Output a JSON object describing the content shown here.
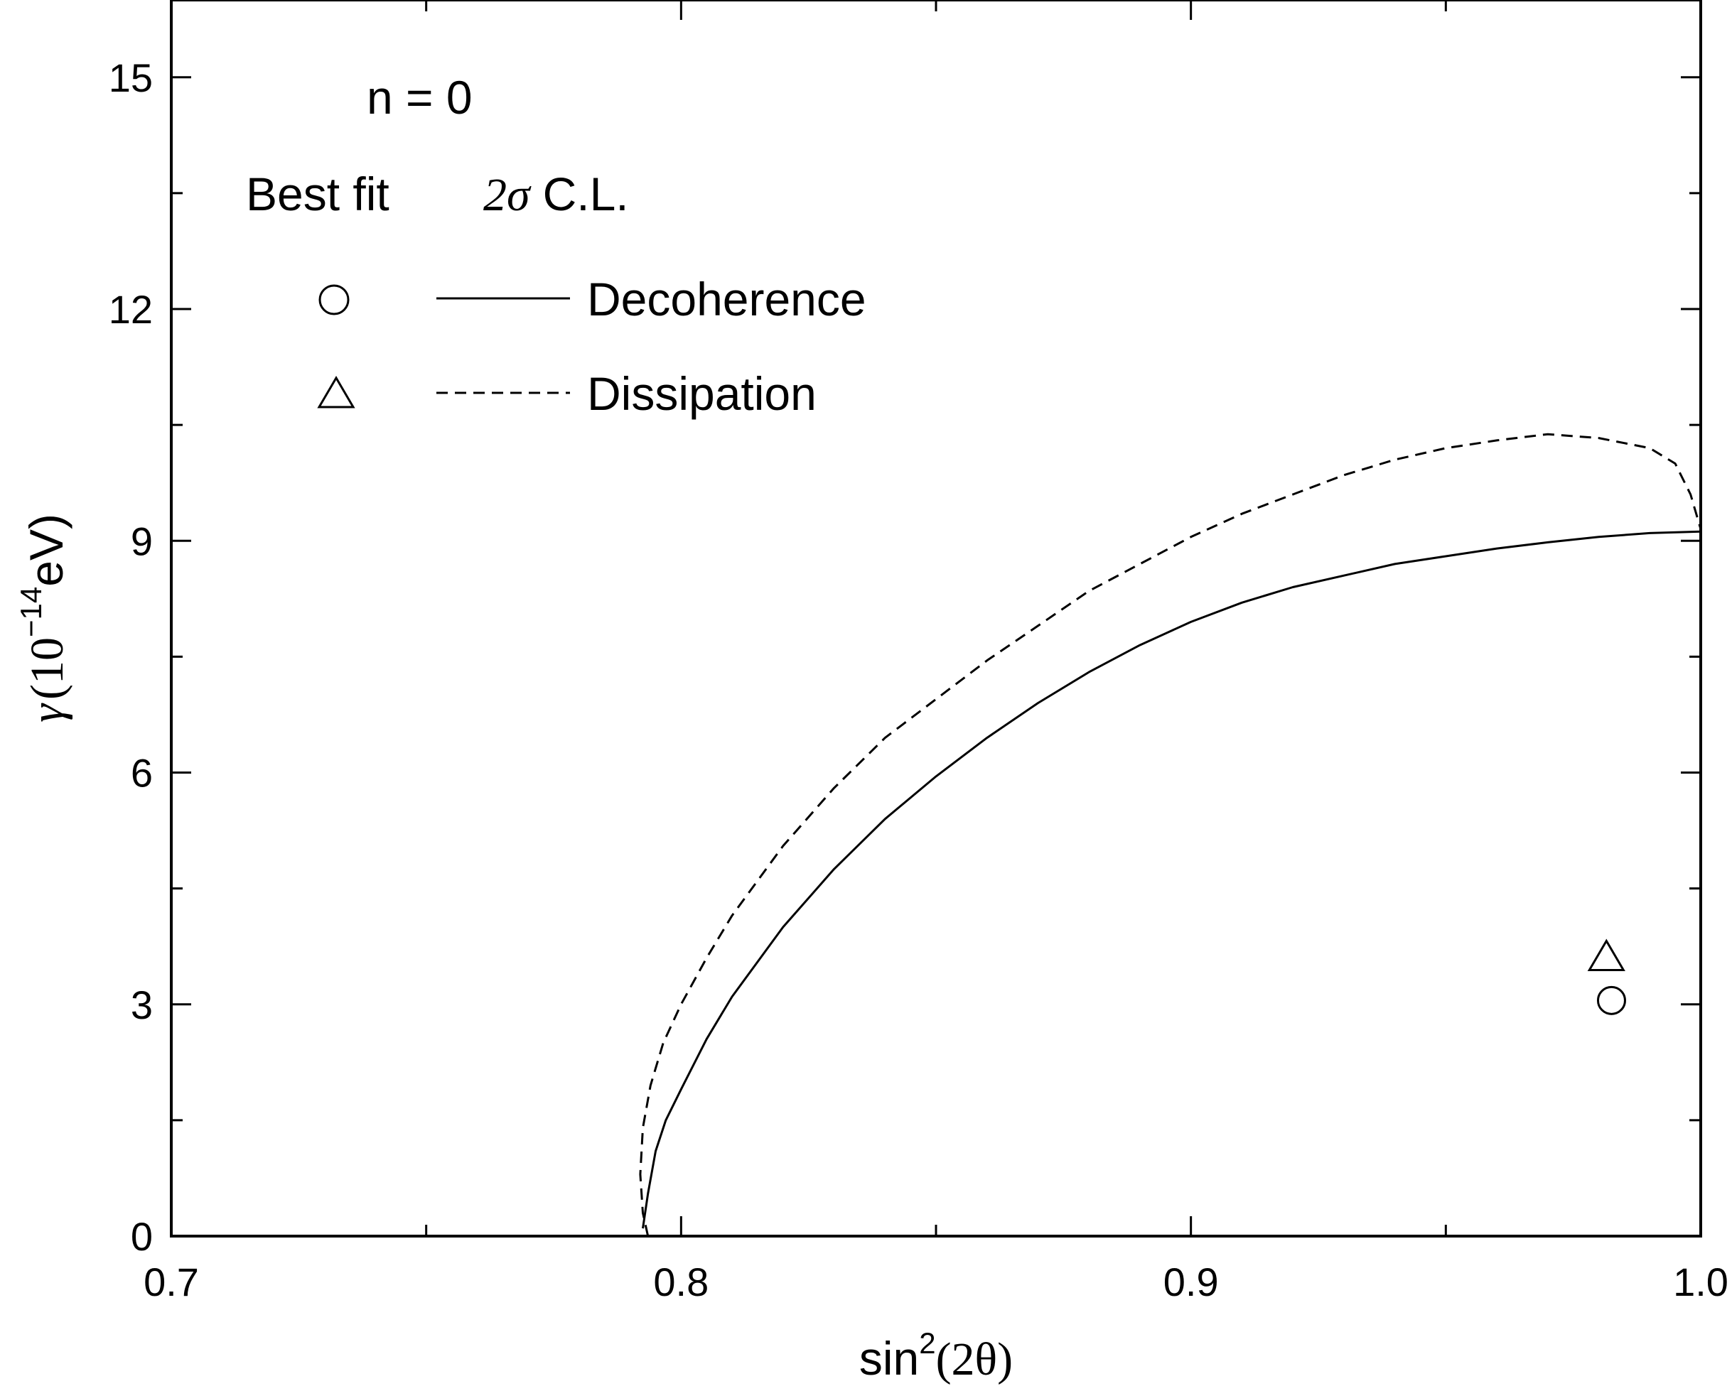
{
  "chart_data": {
    "type": "line",
    "annotation": "n = 0",
    "xlabel": {
      "base": "sin",
      "sup": "2",
      "arg": "(2θ)"
    },
    "ylabel": {
      "sym": "γ",
      "paren_open": "(10",
      "sup": "−14",
      "unit": "eV)"
    },
    "xlim": [
      0.7,
      1.0
    ],
    "ylim": [
      0,
      16
    ],
    "xticks": [
      0.7,
      0.8,
      0.9,
      1.0
    ],
    "xtick_labels": [
      "0.7",
      "0.8",
      "0.9",
      "1.0"
    ],
    "yticks": [
      0,
      3,
      6,
      9,
      12,
      15
    ],
    "ytick_labels": [
      "0",
      "3",
      "6",
      "9",
      "12",
      "15"
    ],
    "legend": {
      "header_best_fit": "Best fit",
      "header_cl_sigma": "2σ",
      "header_cl_text": "C.L.",
      "entries": [
        {
          "marker": "circle",
          "line": "solid",
          "label": "Decoherence"
        },
        {
          "marker": "triangle",
          "line": "dashed",
          "label": "Dissipation"
        }
      ]
    },
    "series": [
      {
        "name": "Decoherence",
        "style": "solid",
        "best_fit": {
          "x": 0.9825,
          "y": 3.05
        },
        "x": [
          0.7925,
          0.7935,
          0.795,
          0.797,
          0.8,
          0.805,
          0.81,
          0.82,
          0.83,
          0.84,
          0.85,
          0.86,
          0.87,
          0.88,
          0.89,
          0.9,
          0.91,
          0.92,
          0.93,
          0.94,
          0.95,
          0.96,
          0.97,
          0.98,
          0.99,
          1.0
        ],
        "y": [
          0.1,
          0.55,
          1.1,
          1.5,
          1.9,
          2.55,
          3.1,
          4.0,
          4.75,
          5.4,
          5.95,
          6.45,
          6.9,
          7.3,
          7.65,
          7.95,
          8.2,
          8.4,
          8.55,
          8.7,
          8.8,
          8.9,
          8.98,
          9.05,
          9.1,
          9.12
        ]
      },
      {
        "name": "Dissipation",
        "style": "dashed",
        "best_fit": {
          "x": 0.9815,
          "y": 3.6
        },
        "x": [
          0.7935,
          0.7925,
          0.792,
          0.7925,
          0.794,
          0.7965,
          0.8,
          0.805,
          0.81,
          0.82,
          0.83,
          0.84,
          0.85,
          0.86,
          0.87,
          0.88,
          0.89,
          0.9,
          0.91,
          0.92,
          0.93,
          0.94,
          0.95,
          0.96,
          0.97,
          0.98,
          0.99,
          0.995,
          0.998,
          1.0
        ],
        "y": [
          0.0,
          0.3,
          0.8,
          1.4,
          1.95,
          2.5,
          3.0,
          3.6,
          4.15,
          5.05,
          5.8,
          6.45,
          6.95,
          7.45,
          7.9,
          8.35,
          8.7,
          9.05,
          9.35,
          9.6,
          9.85,
          10.05,
          10.2,
          10.3,
          10.38,
          10.33,
          10.2,
          10.0,
          9.6,
          9.15
        ]
      }
    ]
  }
}
